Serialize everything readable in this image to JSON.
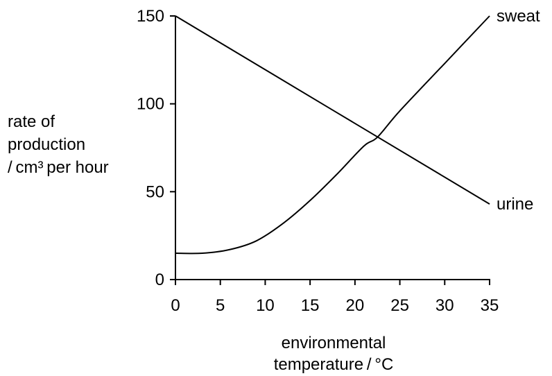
{
  "chart_data": {
    "type": "line",
    "title": "",
    "xlabel": [
      "environmental",
      "temperature / °C"
    ],
    "ylabel": [
      "rate of",
      "production",
      "/ cm³ per hour"
    ],
    "xlim": [
      0,
      35
    ],
    "ylim": [
      0,
      150
    ],
    "xticks": [
      0,
      5,
      10,
      15,
      20,
      25,
      30,
      35
    ],
    "yticks": [
      0,
      50,
      100,
      150
    ],
    "grid": false,
    "series": [
      {
        "name": "sweat",
        "x": [
          0,
          3,
          6,
          9,
          12,
          15,
          18,
          21,
          22.5,
          25,
          30,
          35
        ],
        "y": [
          15,
          15,
          17,
          22,
          32,
          45,
          60,
          76,
          81,
          96,
          123,
          150
        ]
      },
      {
        "name": "urine",
        "x": [
          0,
          35
        ],
        "y": [
          150,
          43
        ]
      }
    ],
    "colors": {
      "line": "#000000",
      "text": "#000000",
      "background": "#ffffff"
    }
  }
}
